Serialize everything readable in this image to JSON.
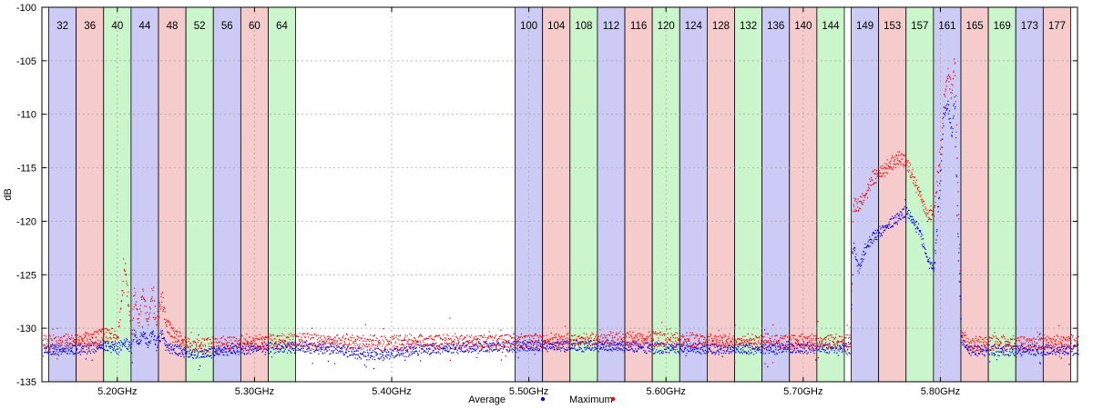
{
  "chart_data": {
    "type": "scatter",
    "title": "",
    "xlabel": "",
    "ylabel": "dB",
    "xlim": [
      5.145,
      5.9
    ],
    "ylim": [
      -135,
      -100
    ],
    "x_ticks": [
      {
        "value": 5.2,
        "label": "5.20GHz"
      },
      {
        "value": 5.3,
        "label": "5.30GHz"
      },
      {
        "value": 5.4,
        "label": "5.40GHz"
      },
      {
        "value": 5.5,
        "label": "5.50GHz"
      },
      {
        "value": 5.6,
        "label": "5.60GHz"
      },
      {
        "value": 5.7,
        "label": "5.70GHz"
      },
      {
        "value": 5.8,
        "label": "5.80GHz"
      }
    ],
    "y_ticks": [
      {
        "value": -100,
        "label": "-100"
      },
      {
        "value": -105,
        "label": "-105"
      },
      {
        "value": -110,
        "label": "-110"
      },
      {
        "value": -115,
        "label": "-115"
      },
      {
        "value": -120,
        "label": "-120"
      },
      {
        "value": -125,
        "label": "-125"
      },
      {
        "value": -130,
        "label": "-130"
      },
      {
        "value": -135,
        "label": "-135"
      }
    ],
    "grid": true,
    "legend_position": "bottom-center",
    "channel_colors": [
      "#cbcbf6",
      "#f6cbcb",
      "#cbf6cb"
    ],
    "channels": [
      {
        "label": "32",
        "start": 5.15,
        "end": 5.17
      },
      {
        "label": "36",
        "start": 5.17,
        "end": 5.19
      },
      {
        "label": "40",
        "start": 5.19,
        "end": 5.21
      },
      {
        "label": "44",
        "start": 5.21,
        "end": 5.23
      },
      {
        "label": "48",
        "start": 5.23,
        "end": 5.25
      },
      {
        "label": "52",
        "start": 5.25,
        "end": 5.27
      },
      {
        "label": "56",
        "start": 5.27,
        "end": 5.29
      },
      {
        "label": "60",
        "start": 5.29,
        "end": 5.31
      },
      {
        "label": "64",
        "start": 5.31,
        "end": 5.33
      },
      {
        "label": "100",
        "start": 5.49,
        "end": 5.51
      },
      {
        "label": "104",
        "start": 5.51,
        "end": 5.53
      },
      {
        "label": "108",
        "start": 5.53,
        "end": 5.55
      },
      {
        "label": "112",
        "start": 5.55,
        "end": 5.57
      },
      {
        "label": "116",
        "start": 5.57,
        "end": 5.59
      },
      {
        "label": "120",
        "start": 5.59,
        "end": 5.61
      },
      {
        "label": "124",
        "start": 5.61,
        "end": 5.63
      },
      {
        "label": "128",
        "start": 5.63,
        "end": 5.65
      },
      {
        "label": "132",
        "start": 5.65,
        "end": 5.67
      },
      {
        "label": "136",
        "start": 5.67,
        "end": 5.69
      },
      {
        "label": "140",
        "start": 5.69,
        "end": 5.71
      },
      {
        "label": "144",
        "start": 5.71,
        "end": 5.73
      },
      {
        "label": "149",
        "start": 5.735,
        "end": 5.755
      },
      {
        "label": "153",
        "start": 5.755,
        "end": 5.775
      },
      {
        "label": "157",
        "start": 5.775,
        "end": 5.795
      },
      {
        "label": "161",
        "start": 5.795,
        "end": 5.815
      },
      {
        "label": "165",
        "start": 5.815,
        "end": 5.835
      },
      {
        "label": "169",
        "start": 5.835,
        "end": 5.855
      },
      {
        "label": "173",
        "start": 5.855,
        "end": 5.875
      },
      {
        "label": "177",
        "start": 5.875,
        "end": 5.895
      }
    ],
    "series": [
      {
        "name": "Average",
        "color": "#0000ff",
        "x": [
          5.145,
          5.16,
          5.18,
          5.19,
          5.2,
          5.205,
          5.21,
          5.212,
          5.215,
          5.218,
          5.222,
          5.225,
          5.228,
          5.232,
          5.235,
          5.24,
          5.25,
          5.255,
          5.26,
          5.27,
          5.28,
          5.3,
          5.33,
          5.36,
          5.38,
          5.4,
          5.42,
          5.45,
          5.5,
          5.55,
          5.6,
          5.65,
          5.7,
          5.734,
          5.736,
          5.74,
          5.745,
          5.75,
          5.755,
          5.76,
          5.765,
          5.77,
          5.775,
          5.78,
          5.785,
          5.79,
          5.795,
          5.8,
          5.802,
          5.805,
          5.808,
          5.81,
          5.812,
          5.815,
          5.82,
          5.84,
          5.86,
          5.88,
          5.9
        ],
        "y": [
          -132,
          -132,
          -131.8,
          -131.6,
          -131.8,
          -131.3,
          -131.8,
          -130.4,
          -131.5,
          -130.3,
          -131.5,
          -130.3,
          -131.5,
          -130.4,
          -131.6,
          -131.9,
          -132.2,
          -132.3,
          -132.4,
          -132.2,
          -132,
          -131.8,
          -131.7,
          -131.9,
          -132.4,
          -132.3,
          -131.9,
          -131.8,
          -131.6,
          -131.6,
          -131.8,
          -131.9,
          -131.8,
          -131.8,
          -122,
          -124.5,
          -122.5,
          -121.5,
          -121,
          -120.5,
          -120,
          -119.5,
          -119,
          -120,
          -121,
          -123.5,
          -124.5,
          -115,
          -110,
          -109,
          -112,
          -108,
          -120,
          -131,
          -132,
          -132,
          -132,
          -132,
          -132
        ]
      },
      {
        "name": "Maximum",
        "color": "#ff0000",
        "x": [
          5.145,
          5.16,
          5.18,
          5.19,
          5.2,
          5.205,
          5.21,
          5.212,
          5.215,
          5.218,
          5.222,
          5.225,
          5.228,
          5.232,
          5.235,
          5.24,
          5.25,
          5.255,
          5.26,
          5.27,
          5.28,
          5.3,
          5.33,
          5.36,
          5.38,
          5.4,
          5.42,
          5.45,
          5.5,
          5.55,
          5.6,
          5.65,
          5.7,
          5.734,
          5.736,
          5.74,
          5.745,
          5.75,
          5.755,
          5.76,
          5.765,
          5.77,
          5.775,
          5.78,
          5.785,
          5.79,
          5.795,
          5.8,
          5.802,
          5.805,
          5.808,
          5.81,
          5.812,
          5.815,
          5.82,
          5.84,
          5.86,
          5.88,
          5.9
        ],
        "y": [
          -131.3,
          -131.2,
          -131,
          -130.5,
          -130.8,
          -124,
          -130.8,
          -126.5,
          -129.5,
          -126.5,
          -129.5,
          -126.5,
          -129.5,
          -127,
          -129.5,
          -130.5,
          -131.4,
          -131.6,
          -131.6,
          -131.5,
          -131.4,
          -131.3,
          -131.1,
          -131.2,
          -131.3,
          -131.3,
          -131.2,
          -131.2,
          -131.2,
          -131,
          -131,
          -131.2,
          -131.2,
          -131.2,
          -118.5,
          -118.5,
          -117.5,
          -116,
          -115.5,
          -115,
          -114.5,
          -114,
          -114.5,
          -116,
          -117.5,
          -119.5,
          -119,
          -113,
          -109,
          -106,
          -108,
          -104.5,
          -115,
          -130.5,
          -131.5,
          -131.3,
          -131.4,
          -131.3,
          -131.3
        ]
      }
    ],
    "legend": [
      {
        "label": "Average",
        "color": "#0000ff"
      },
      {
        "label": "Maximum",
        "color": "#ff0000"
      }
    ]
  }
}
